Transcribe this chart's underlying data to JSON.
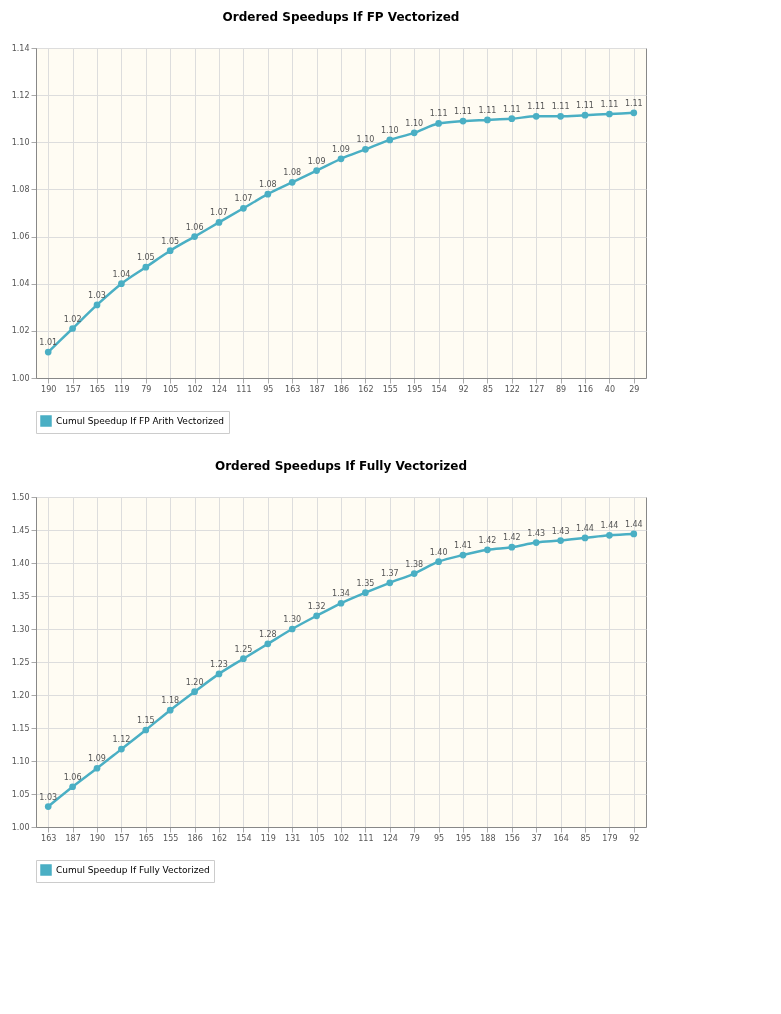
{
  "chart_data": [
    {
      "type": "line",
      "title": "Ordered Speedups If FP Vectorized",
      "categories": [
        "190",
        "157",
        "165",
        "119",
        "79",
        "105",
        "102",
        "124",
        "111",
        "95",
        "163",
        "187",
        "186",
        "162",
        "155",
        "195",
        "154",
        "92",
        "85",
        "122",
        "127",
        "89",
        "116",
        "40",
        "29"
      ],
      "series": [
        {
          "name": "Cumul Speedup If FP Arith Vectorized",
          "color": "#4aafc4",
          "values": [
            1.011,
            1.021,
            1.031,
            1.04,
            1.047,
            1.054,
            1.06,
            1.066,
            1.072,
            1.078,
            1.083,
            1.088,
            1.093,
            1.097,
            1.101,
            1.104,
            1.108,
            1.109,
            1.1095,
            1.11,
            1.111,
            1.111,
            1.1115,
            1.112,
            1.1125
          ],
          "value_labels": [
            "1.01",
            "1.02",
            "1.03",
            "1.04",
            "1.05",
            "1.05",
            "1.06",
            "1.07",
            "1.07",
            "1.08",
            "1.08",
            "1.09",
            "1.09",
            "1.10",
            "1.10",
            "1.10",
            "1.11",
            "1.11",
            "1.11",
            "1.11",
            "1.11",
            "1.11",
            "1.11",
            "1.11",
            "1.11"
          ]
        }
      ],
      "ylim": [
        1.0,
        1.14
      ],
      "yticks": [
        {
          "value": 1.0,
          "label": "1.00"
        },
        {
          "value": 1.02,
          "label": "1.02"
        },
        {
          "value": 1.04,
          "label": "1.04"
        },
        {
          "value": 1.06,
          "label": "1.06"
        },
        {
          "value": 1.08,
          "label": "1.08"
        },
        {
          "value": 1.1,
          "label": "1.10"
        },
        {
          "value": 1.12,
          "label": "1.12"
        },
        {
          "value": 1.14,
          "label": "1.14"
        }
      ],
      "grid": true,
      "legend": "bottom",
      "marker": "circle",
      "line_style": "solid"
    },
    {
      "type": "line",
      "title": "Ordered Speedups If Fully Vectorized",
      "categories": [
        "163",
        "187",
        "190",
        "157",
        "165",
        "155",
        "186",
        "162",
        "154",
        "119",
        "131",
        "105",
        "102",
        "111",
        "124",
        "79",
        "95",
        "195",
        "188",
        "156",
        "37",
        "164",
        "85",
        "179",
        "92"
      ],
      "series": [
        {
          "name": "Cumul Speedup If Fully Vectorized",
          "color": "#4aafc4",
          "values": [
            1.031,
            1.061,
            1.089,
            1.118,
            1.147,
            1.177,
            1.205,
            1.232,
            1.255,
            1.2775,
            1.3,
            1.32,
            1.339,
            1.355,
            1.37,
            1.384,
            1.402,
            1.412,
            1.42,
            1.424,
            1.431,
            1.434,
            1.438,
            1.442,
            1.444
          ],
          "value_labels": [
            "1.03",
            "1.06",
            "1.09",
            "1.12",
            "1.15",
            "1.18",
            "1.20",
            "1.23",
            "1.25",
            "1.28",
            "1.30",
            "1.32",
            "1.34",
            "1.35",
            "1.37",
            "1.38",
            "1.40",
            "1.41",
            "1.42",
            "1.42",
            "1.43",
            "1.43",
            "1.44",
            "1.44",
            "1.44"
          ]
        }
      ],
      "ylim": [
        1.0,
        1.5
      ],
      "yticks": [
        {
          "value": 1.0,
          "label": "1.00"
        },
        {
          "value": 1.05,
          "label": "1.05"
        },
        {
          "value": 1.1,
          "label": "1.10"
        },
        {
          "value": 1.15,
          "label": "1.15"
        },
        {
          "value": 1.2,
          "label": "1.20"
        },
        {
          "value": 1.25,
          "label": "1.25"
        },
        {
          "value": 1.3,
          "label": "1.30"
        },
        {
          "value": 1.35,
          "label": "1.35"
        },
        {
          "value": 1.4,
          "label": "1.40"
        },
        {
          "value": 1.45,
          "label": "1.45"
        },
        {
          "value": 1.5,
          "label": "1.50"
        }
      ],
      "grid": true,
      "legend": "bottom",
      "marker": "circle",
      "line_style": "solid"
    }
  ]
}
